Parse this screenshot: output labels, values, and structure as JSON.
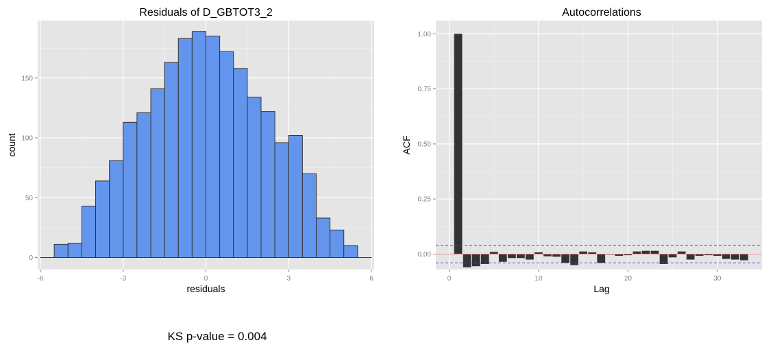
{
  "chart_data": [
    {
      "type": "bar",
      "title": "Residuals of D_GBTOT3_2",
      "xlabel": "residuals",
      "ylabel": "count",
      "xlim": [
        -6.1,
        6.1
      ],
      "ylim": [
        -10,
        198
      ],
      "x_ticks": [
        -6,
        -3,
        0,
        3,
        6
      ],
      "x_tick_labels": [
        "-6",
        "-3",
        "0",
        "3",
        "6"
      ],
      "y_ticks": [
        0,
        50,
        100,
        150
      ],
      "y_tick_labels": [
        "0",
        "50",
        "100",
        "150"
      ],
      "grid": true,
      "bin_width": 0.5,
      "bin_edges": [
        -6,
        -5.5,
        -5,
        -4.5,
        -4,
        -3.5,
        -3,
        -2.5,
        -2,
        -1.5,
        -1,
        -0.5,
        0,
        0.5,
        1,
        1.5,
        2,
        2.5,
        3,
        3.5,
        4,
        4.5,
        5,
        5.5,
        6
      ],
      "values": [
        0,
        11,
        12,
        43,
        64,
        81,
        113,
        121,
        141,
        163,
        183,
        189,
        185,
        172,
        158,
        134,
        122,
        96,
        102,
        70,
        33,
        23,
        10,
        0
      ],
      "fill_color": "#6495ed",
      "edge_color": "#333333"
    },
    {
      "type": "bar",
      "title": "Autocorrelations",
      "xlabel": "Lag",
      "ylabel": "ACF",
      "xlim": [
        -1.5,
        35
      ],
      "ylim": [
        -0.07,
        1.06
      ],
      "x_ticks": [
        0,
        10,
        20,
        30
      ],
      "x_tick_labels": [
        "0",
        "10",
        "20",
        "30"
      ],
      "y_ticks": [
        0,
        0.25,
        0.5,
        0.75,
        1.0
      ],
      "y_tick_labels": [
        "0.00",
        "0.25",
        "0.50",
        "0.75",
        "1.00"
      ],
      "grid": true,
      "lags": [
        1,
        2,
        3,
        4,
        5,
        6,
        7,
        8,
        9,
        10,
        11,
        12,
        13,
        14,
        15,
        16,
        17,
        18,
        19,
        20,
        21,
        22,
        23,
        24,
        25,
        26,
        27,
        28,
        29,
        30,
        31,
        32,
        33
      ],
      "values": [
        1.0,
        -0.06,
        -0.055,
        -0.045,
        0.01,
        -0.035,
        -0.018,
        -0.018,
        -0.025,
        0.008,
        -0.01,
        -0.012,
        -0.04,
        -0.05,
        0.012,
        0.008,
        -0.04,
        0.0,
        -0.008,
        -0.005,
        0.012,
        0.015,
        0.015,
        -0.045,
        -0.015,
        0.012,
        -0.025,
        -0.008,
        -0.005,
        -0.008,
        -0.022,
        -0.025,
        -0.028
      ],
      "zero_line_color": "#f08080",
      "confidence_bound": 0.04,
      "confidence_color": "#4444ee",
      "bar_color": "#333333"
    }
  ],
  "ks_text": "KS p-value =  0.004"
}
